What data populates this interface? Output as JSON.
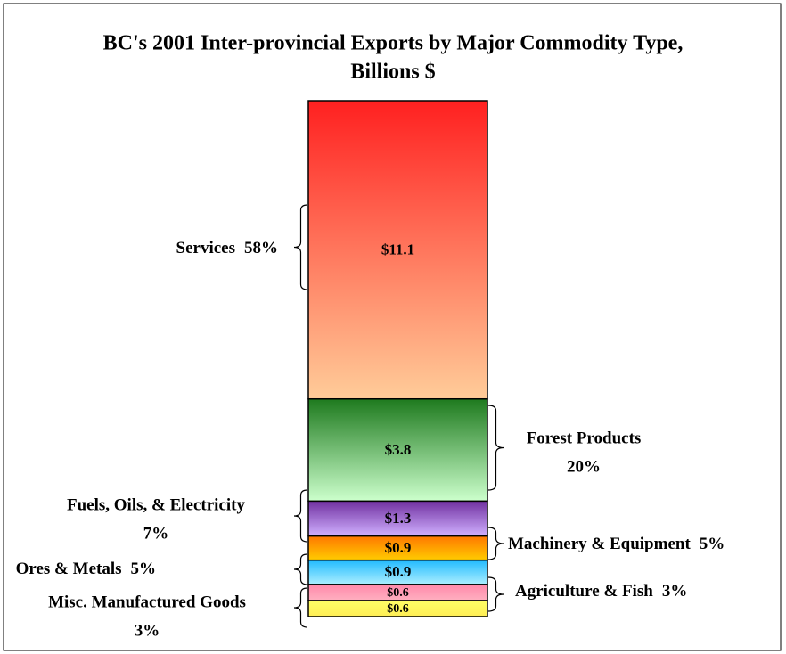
{
  "chart_data": {
    "type": "stacked-bar",
    "title": [
      "BC's 2001 Inter-provincial Exports by Major Commodity Type,",
      "Billions $"
    ],
    "series": [
      {
        "name": "Misc. Manufactured Goods",
        "values": [
          0.6
        ],
        "value_labels": [
          "$0.6"
        ],
        "percent": 3,
        "percent_label": "3%",
        "color": [
          "#ffff66",
          "#ffee55"
        ]
      },
      {
        "name": "Agriculture & Fish",
        "values": [
          0.6
        ],
        "value_labels": [
          "$0.6"
        ],
        "percent": 3,
        "percent_label": "3%",
        "color": [
          "#ff88aa",
          "#ffb0c0"
        ]
      },
      {
        "name": "Ores & Metals",
        "values": [
          0.9
        ],
        "value_labels": [
          "$0.9"
        ],
        "percent": 5,
        "percent_label": "5%",
        "color": [
          "#22bbff",
          "#aaeeff"
        ]
      },
      {
        "name": "Machinery & Equipment",
        "values": [
          0.9
        ],
        "value_labels": [
          "$0.9"
        ],
        "percent": 5,
        "percent_label": "5%",
        "color": [
          "#ff7700",
          "#ffcc00"
        ]
      },
      {
        "name": "Fuels, Oils, & Electricity",
        "values": [
          1.3
        ],
        "value_labels": [
          "$1.3"
        ],
        "percent": 7,
        "percent_label": "7%",
        "color": [
          "#7030a0",
          "#d0b0ff"
        ]
      },
      {
        "name": "Forest Products",
        "values": [
          3.8
        ],
        "value_labels": [
          "$3.8"
        ],
        "percent": 20,
        "percent_label": "20%",
        "color": [
          "#1e7a1e",
          "#ccffcc"
        ]
      },
      {
        "name": "Services",
        "values": [
          11.1
        ],
        "value_labels": [
          "$11.1"
        ],
        "percent": 58,
        "percent_label": "58%",
        "color": [
          "#ff2020",
          "#ffcc99"
        ]
      }
    ]
  }
}
